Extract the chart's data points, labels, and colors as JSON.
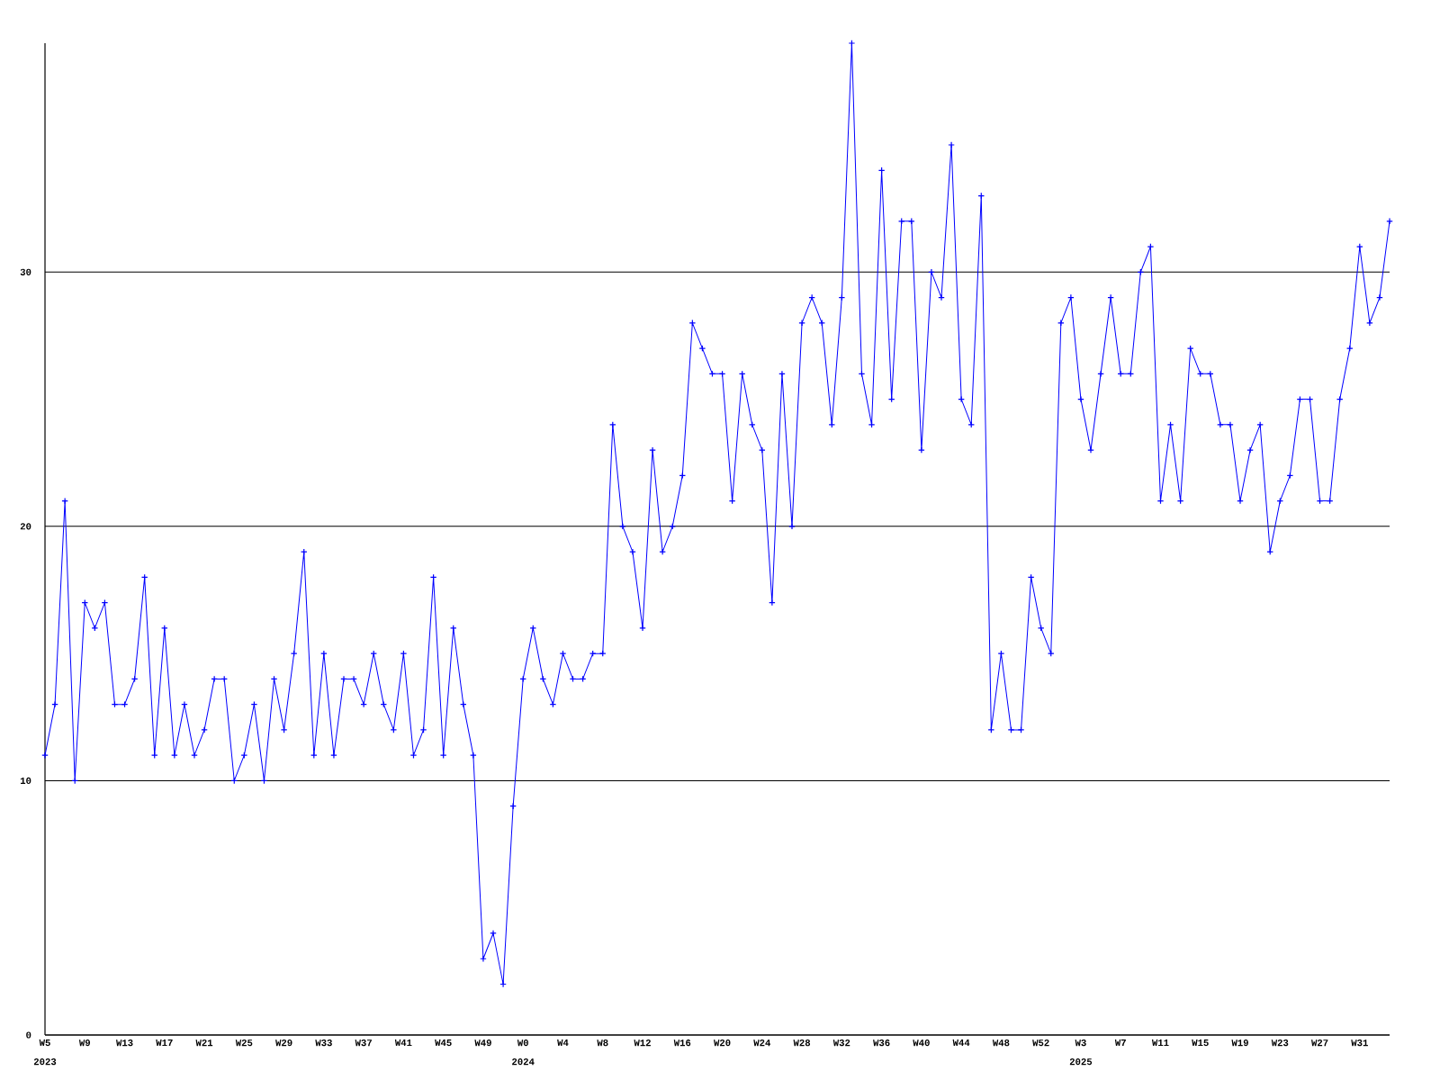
{
  "chart_data": {
    "type": "line",
    "categories": [
      "W5",
      null,
      null,
      null,
      "W9",
      null,
      null,
      null,
      "W13",
      null,
      null,
      null,
      "W17",
      null,
      null,
      null,
      "W21",
      null,
      null,
      null,
      "W25",
      null,
      null,
      null,
      "W29",
      null,
      null,
      null,
      "W33",
      null,
      null,
      null,
      "W37",
      null,
      null,
      null,
      "W41",
      null,
      null,
      null,
      "W45",
      null,
      null,
      null,
      "W49",
      null,
      null,
      null,
      "W0",
      null,
      null,
      null,
      "W4",
      null,
      null,
      null,
      "W8",
      null,
      null,
      null,
      "W12",
      null,
      null,
      null,
      "W16",
      null,
      null,
      null,
      "W20",
      null,
      null,
      null,
      "W24",
      null,
      null,
      null,
      "W28",
      null,
      null,
      null,
      "W32",
      null,
      null,
      null,
      "W36",
      null,
      null,
      null,
      "W40",
      null,
      null,
      null,
      "W44",
      null,
      null,
      null,
      "W48",
      null,
      null,
      null,
      "W52",
      null,
      null,
      null,
      "W3",
      null,
      null,
      null,
      "W7",
      null,
      null,
      null,
      "W11",
      null,
      null,
      null,
      "W15",
      null,
      null,
      null,
      "W19",
      null,
      null,
      null,
      "W23",
      null,
      null,
      null,
      "W27",
      null,
      null,
      null,
      "W31",
      null,
      null,
      null
    ],
    "values": [
      11,
      13,
      21,
      10,
      17,
      16,
      17,
      13,
      13,
      14,
      18,
      11,
      16,
      11,
      13,
      11,
      12,
      14,
      14,
      10,
      11,
      13,
      10,
      14,
      12,
      15,
      19,
      11,
      15,
      11,
      14,
      14,
      13,
      15,
      13,
      12,
      15,
      11,
      12,
      18,
      11,
      16,
      13,
      11,
      3,
      4,
      2,
      9,
      14,
      16,
      14,
      13,
      15,
      14,
      14,
      15,
      15,
      24,
      20,
      19,
      16,
      23,
      19,
      20,
      22,
      28,
      27,
      26,
      26,
      21,
      26,
      24,
      23,
      17,
      26,
      20,
      28,
      29,
      28,
      24,
      29,
      39,
      26,
      24,
      34,
      25,
      32,
      32,
      23,
      30,
      29,
      35,
      25,
      24,
      33,
      12,
      15,
      12,
      12,
      18,
      16,
      15,
      28,
      29,
      25,
      23,
      26,
      29,
      26,
      26,
      30,
      31,
      21,
      24,
      21,
      27,
      26,
      26,
      24,
      24,
      21,
      23,
      24,
      19,
      21,
      22,
      25,
      25,
      21,
      21,
      25,
      27,
      31,
      28,
      29,
      32
    ],
    "color": "#0000ff",
    "ylim": [
      0,
      39
    ],
    "yticks": [
      0,
      10,
      20,
      30
    ],
    "grid": "y",
    "marker": "cross",
    "annotations": [
      "2023",
      "2024",
      "2025"
    ]
  }
}
